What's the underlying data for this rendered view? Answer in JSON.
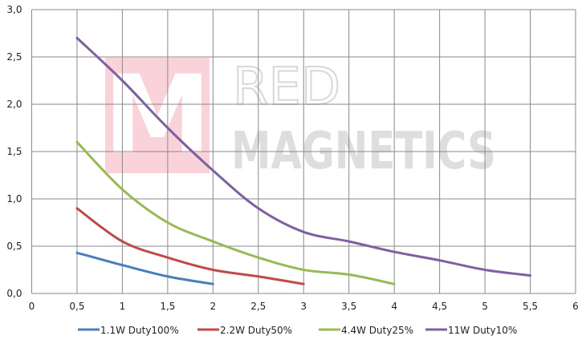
{
  "chart_data": {
    "type": "line",
    "title": "",
    "xlabel": "",
    "ylabel": "",
    "xlim": [
      0,
      6
    ],
    "ylim": [
      0,
      3.0
    ],
    "xticks": [
      "0",
      "0,5",
      "1",
      "1,5",
      "2",
      "2,5",
      "3",
      "3,5",
      "4",
      "4,5",
      "5",
      "5,5",
      "6"
    ],
    "yticks": [
      "0,0",
      "0,5",
      "1,0",
      "1,5",
      "2,0",
      "2,5",
      "3,0"
    ],
    "grid": true,
    "legend_position": "bottom",
    "series": [
      {
        "name": "1.1W Duty100%",
        "color": "#4a7ebb",
        "x": [
          0.5,
          1,
          1.5,
          2
        ],
        "y": [
          0.43,
          0.3,
          0.18,
          0.1
        ]
      },
      {
        "name": "2.2W Duty50%",
        "color": "#be4b48",
        "x": [
          0.5,
          1,
          1.5,
          2,
          2.5,
          3
        ],
        "y": [
          0.9,
          0.55,
          0.38,
          0.25,
          0.18,
          0.1
        ]
      },
      {
        "name": "4.4W Duty25%",
        "color": "#98b954",
        "x": [
          0.5,
          1,
          1.5,
          2,
          2.5,
          3,
          3.5,
          4
        ],
        "y": [
          1.6,
          1.1,
          0.75,
          0.55,
          0.38,
          0.25,
          0.2,
          0.1
        ]
      },
      {
        "name": "11W Duty10%",
        "color": "#7d60a0",
        "x": [
          0.5,
          1,
          1.5,
          2,
          2.5,
          3,
          3.5,
          4,
          4.5,
          5,
          5.5
        ],
        "y": [
          2.7,
          2.25,
          1.75,
          1.3,
          0.9,
          0.65,
          0.55,
          0.44,
          0.35,
          0.25,
          0.19
        ]
      }
    ],
    "watermark": {
      "line1": "RED",
      "line2": "MAGNETICS",
      "logo_letter": "M"
    }
  }
}
